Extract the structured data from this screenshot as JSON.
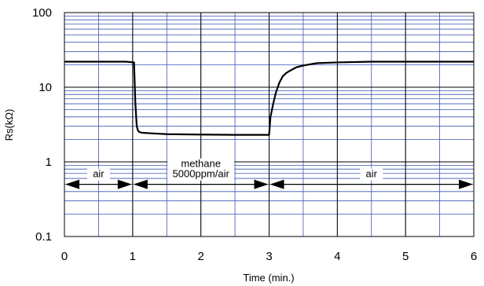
{
  "chart_data": {
    "type": "line",
    "xlabel": "Time (min.)",
    "ylabel": "Rs(kΩ)",
    "xlim": [
      0,
      6
    ],
    "ylim": [
      0.1,
      100
    ],
    "y_scale": "log",
    "x_ticks": [
      "0",
      "1",
      "2",
      "3",
      "4",
      "5",
      "6"
    ],
    "y_ticks": [
      "0.1",
      "1",
      "10",
      "100"
    ],
    "grid": true,
    "colors": {
      "grid": "#3a55b4",
      "line": "#000000",
      "frame": "#000000"
    },
    "series": [
      {
        "x": [
          0,
          0.5,
          0.9,
          1.02,
          1.04,
          1.06,
          1.08,
          1.1,
          1.15,
          1.25,
          1.5,
          2.0,
          2.5,
          2.9,
          3.0,
          3.02,
          3.06,
          3.1,
          3.15,
          3.2,
          3.25,
          3.3,
          3.4,
          3.5,
          3.7,
          4.0,
          4.5,
          5.0,
          6.0
        ],
        "y": [
          22.0,
          22.0,
          22.0,
          21.5,
          6.0,
          3.0,
          2.6,
          2.5,
          2.45,
          2.42,
          2.35,
          2.32,
          2.3,
          2.3,
          2.3,
          4.0,
          6.0,
          8.5,
          11.5,
          14.0,
          15.5,
          16.5,
          18.5,
          19.5,
          21.0,
          21.5,
          22.0,
          22.0,
          22.0
        ]
      }
    ],
    "annotations": [
      {
        "label": "air",
        "x_start": 0,
        "x_end": 1,
        "y": 0.5
      },
      {
        "label": "methane\n5000ppm/air",
        "x_start": 1,
        "x_end": 3,
        "y": 0.5
      },
      {
        "label": "air",
        "x_start": 3,
        "x_end": 6,
        "y": 0.5
      }
    ]
  }
}
